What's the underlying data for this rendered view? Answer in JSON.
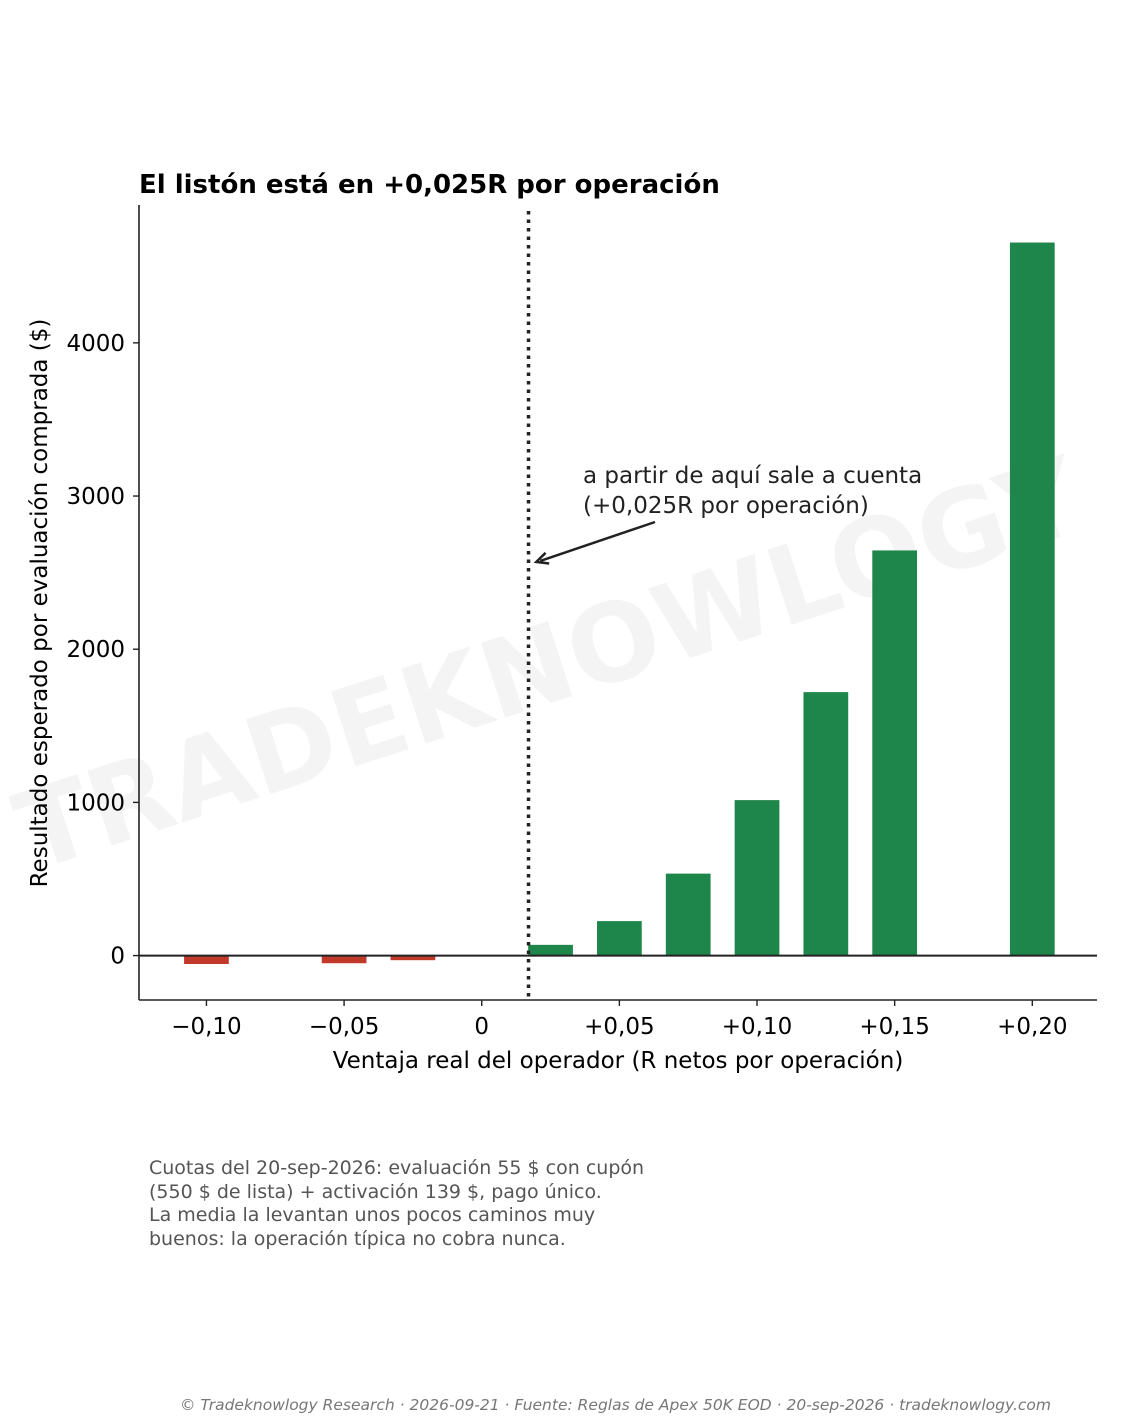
{
  "chart_data": {
    "type": "bar",
    "title": "El listón está en +0,025R por operación",
    "xlabel": "Ventaja real del operador (R netos por operación)",
    "ylabel": "Resultado esperado por evaluación comprada ($)",
    "x": [
      -0.1,
      -0.05,
      -0.025,
      0.025,
      0.05,
      0.075,
      0.1,
      0.125,
      0.15,
      0.2
    ],
    "values": [
      -55,
      -50,
      -30,
      70,
      225,
      535,
      1015,
      1720,
      2645,
      4655
    ],
    "xlim": [
      -0.1245,
      0.2235
    ],
    "ylim": [
      -290,
      4900
    ],
    "x_ticks": [
      {
        "value": -0.1,
        "label": "−0,10"
      },
      {
        "value": -0.05,
        "label": "−0,05"
      },
      {
        "value": 0,
        "label": "0"
      },
      {
        "value": 0.05,
        "label": "+0,05"
      },
      {
        "value": 0.1,
        "label": "+0,10"
      },
      {
        "value": 0.15,
        "label": "+0,15"
      },
      {
        "value": 0.2,
        "label": "+0,20"
      }
    ],
    "y_ticks": [
      {
        "value": 0,
        "label": "0"
      },
      {
        "value": 1000,
        "label": "1000"
      },
      {
        "value": 2000,
        "label": "2000"
      },
      {
        "value": 3000,
        "label": "3000"
      },
      {
        "value": 4000,
        "label": "4000"
      }
    ],
    "threshold": {
      "x": 0.017
    },
    "annotation": {
      "lines": [
        "a partir de aquí sale a cuenta",
        "(+0,025R por operación)"
      ],
      "arrow_target": {
        "x": 0.018,
        "y": 2570
      }
    },
    "colors": {
      "positive": "#1f864b",
      "negative": "#c0392b",
      "axis": "#222222",
      "threshold": "#222222"
    },
    "grid": false,
    "legend": "none"
  },
  "watermark": "TRADEKNOWLOGY",
  "note": "Cuotas del 20-sep-2026: evaluación 55 $ con cupón\n(550 $ de lista) + activación 139 $, pago único.\nLa media la levantan unos pocos caminos muy\nbuenos: la operación típica no cobra nunca.",
  "footer": "© Tradeknowlogy Research   ·   2026-09-21   ·   Fuente: Reglas de Apex 50K EOD · 20-sep-2026   ·   tradeknowlogy.com"
}
